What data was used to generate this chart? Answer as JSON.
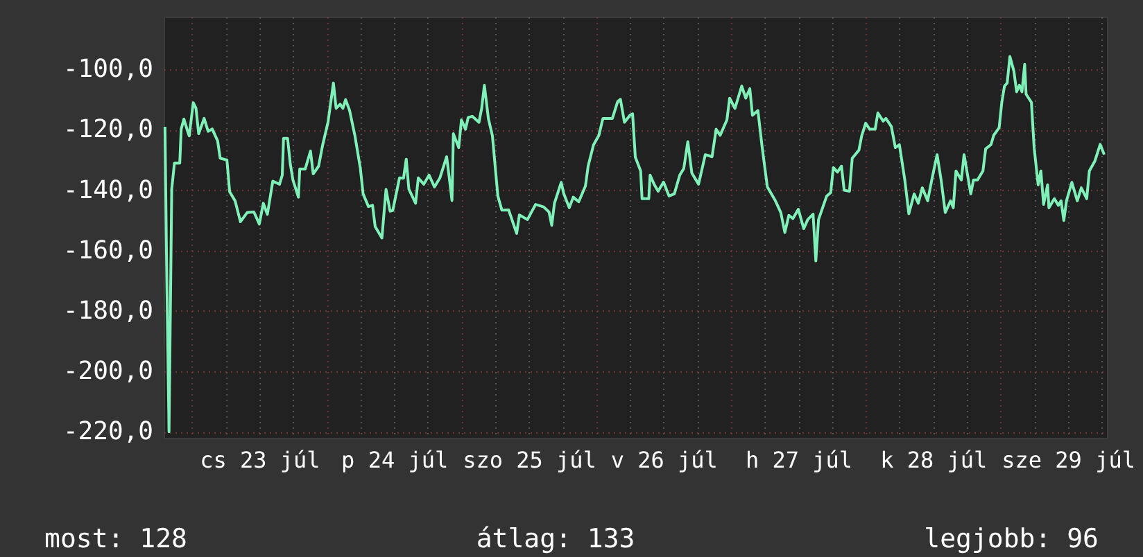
{
  "chart_data": {
    "type": "line",
    "x": [
      "--07-22T19:12",
      "--07-22T19:26",
      "--07-22T19:55",
      "--07-22T20:24",
      "--07-22T20:53",
      "--07-22T21:50",
      "--07-22T22:05",
      "--07-22T22:34",
      "--07-22T23:17",
      "--07-22T23:31",
      "--07-23T00:14",
      "--07-23T00:43",
      "--07-23T01:12",
      "--07-23T02:10",
      "--07-23T02:53",
      "--07-23T03:36",
      "--07-23T04:34",
      "--07-23T05:02",
      "--07-23T06:14",
      "--07-23T06:43",
      "--07-23T07:41",
      "--07-23T08:38",
      "--07-23T09:50",
      "--07-23T11:02",
      "--07-23T12:00",
      "--07-23T12:43",
      "--07-23T13:26",
      "--07-23T14:24",
      "--07-23T15:36",
      "--07-23T16:05",
      "--07-23T16:19",
      "--07-23T17:02",
      "--07-23T17:31",
      "--07-23T18:00",
      "--07-23T18:58",
      "--07-23T19:12",
      "--07-23T20:10",
      "--07-23T21:07",
      "--07-23T21:36",
      "--07-23T22:34",
      "--07-23T23:17",
      "--07-24T00:14",
      "--07-24T01:12",
      "--07-24T01:41",
      "--07-24T02:24",
      "--07-24T02:53",
      "--07-24T03:22",
      "--07-24T04:05",
      "--07-24T05:02",
      "--07-24T06:00",
      "--07-24T06:29",
      "--07-24T07:26",
      "--07-24T08:10",
      "--07-24T08:38",
      "--07-24T09:50",
      "--07-24T10:34",
      "--07-24T11:17",
      "--07-24T11:46",
      "--07-24T12:58",
      "--07-24T13:41",
      "--07-24T14:10",
      "--07-24T14:38",
      "--07-24T15:50",
      "--07-24T16:19",
      "--07-24T17:17",
      "--07-24T18:14",
      "--07-24T19:12",
      "--07-24T20:10",
      "--07-24T21:22",
      "--07-24T21:50",
      "--07-24T22:19",
      "--07-24T22:34",
      "--07-24T23:31",
      "--07-25T00:00",
      "--07-25T00:43",
      "--07-25T01:12",
      "--07-25T01:55",
      "--07-25T03:07",
      "--07-25T03:36",
      "--07-25T04:05",
      "--07-25T04:48",
      "--07-25T05:31",
      "--07-25T06:29",
      "--07-25T07:12",
      "--07-25T08:24",
      "--07-25T09:50",
      "--07-25T10:19",
      "--07-25T11:46",
      "--07-25T13:12",
      "--07-25T14:38",
      "--07-25T15:36",
      "--07-25T16:05",
      "--07-25T16:34",
      "--07-25T17:46",
      "--07-25T18:14",
      "--07-25T19:12",
      "--07-25T19:55",
      "--07-25T20:53",
      "--07-25T22:05",
      "--07-25T22:34",
      "--07-25T23:31",
      "--07-26T00:29",
      "--07-26T01:12",
      "--07-26T02:53",
      "--07-26T03:50",
      "--07-26T04:19",
      "--07-26T05:02",
      "--07-26T06:00",
      "--07-26T06:29",
      "--07-26T06:58",
      "--07-26T07:55",
      "--07-26T08:10",
      "--07-26T09:22",
      "--07-26T09:36",
      "--07-26T10:19",
      "--07-26T11:02",
      "--07-26T12:00",
      "--07-26T12:58",
      "--07-26T13:55",
      "--07-26T14:53",
      "--07-26T15:36",
      "--07-26T16:19",
      "--07-26T17:02",
      "--07-26T18:14",
      "--07-26T19:26",
      "--07-26T20:38",
      "--07-26T21:22",
      "--07-26T22:05",
      "--07-26T23:17",
      "--07-26T23:46",
      "--07-27T00:43",
      "--07-27T01:55",
      "--07-27T02:38",
      "--07-27T03:22",
      "--07-27T03:50",
      "--07-27T04:48",
      "--07-27T05:31",
      "--07-27T06:29",
      "--07-27T07:12",
      "--07-27T07:55",
      "--07-27T08:53",
      "--07-27T09:36",
      "--07-27T10:19",
      "--07-27T11:02",
      "--07-27T12:00",
      "--07-27T12:58",
      "--07-27T13:41",
      "--07-27T14:38",
      "--07-27T15:07",
      "--07-27T15:36",
      "--07-27T17:02",
      "--07-27T17:46",
      "--07-27T18:14",
      "--07-27T18:58",
      "--07-27T19:41",
      "--07-27T20:10",
      "--07-27T21:07",
      "--07-27T21:36",
      "--07-27T22:48",
      "--07-27T23:17",
      "--07-28T00:00",
      "--07-28T00:43",
      "--07-28T01:41",
      "--07-28T02:10",
      "--07-28T03:07",
      "--07-28T03:36",
      "--07-28T04:34",
      "--07-28T05:17",
      "--07-28T06:00",
      "--07-28T06:58",
      "--07-28T07:41",
      "--07-28T08:38",
      "--07-28T09:22",
      "--07-28T10:05",
      "--07-28T11:02",
      "--07-28T11:46",
      "--07-28T12:43",
      "--07-28T13:26",
      "--07-28T14:10",
      "--07-28T15:07",
      "--07-28T15:36",
      "--07-28T16:05",
      "--07-28T17:02",
      "--07-28T17:31",
      "--07-28T18:43",
      "--07-28T19:12",
      "--07-28T19:55",
      "--07-28T20:53",
      "--07-28T21:22",
      "--07-28T22:19",
      "--07-28T22:48",
      "--07-28T23:46",
      "--07-29T00:14",
      "--07-29T00:43",
      "--07-29T01:12",
      "--07-29T01:41",
      "--07-29T02:24",
      "--07-29T02:53",
      "--07-29T03:22",
      "--07-29T03:50",
      "--07-29T04:19",
      "--07-29T04:34",
      "--07-29T05:31",
      "--07-29T06:00",
      "--07-29T06:43",
      "--07-29T07:12",
      "--07-29T07:41",
      "--07-29T08:24",
      "--07-29T08:38",
      "--07-29T09:36",
      "--07-29T10:19",
      "--07-29T10:48",
      "--07-29T11:17",
      "--07-29T11:46",
      "--07-29T12:43",
      "--07-29T13:41",
      "--07-29T14:24",
      "--07-29T15:22",
      "--07-29T15:50",
      "--07-29T16:48",
      "--07-29T17:46",
      "--07-29T18:29"
    ],
    "series": [
      {
        "color": "#7ff0b8",
        "values": [
          -119,
          -156.6,
          -220,
          -139.6,
          -131,
          -131,
          -119.8,
          -116.4,
          -120.8,
          -122,
          -111,
          -112.8,
          -121.3,
          -116.2,
          -120.5,
          -119.7,
          -123.6,
          -129.4,
          -130,
          -140.5,
          -143.5,
          -150.4,
          -147.4,
          -147.2,
          -151.2,
          -144.3,
          -148,
          -137,
          -138,
          -135,
          -122.8,
          -122.8,
          -131.3,
          -136.7,
          -142.3,
          -133,
          -133,
          -127,
          -134.6,
          -132,
          -125,
          -117.5,
          -104.5,
          -112.9,
          -111.5,
          -112.9,
          -110,
          -113.6,
          -122,
          -132.8,
          -141.2,
          -145.4,
          -145,
          -152,
          -155.8,
          -139.7,
          -146.9,
          -146.7,
          -135.9,
          -136,
          -129.7,
          -139.6,
          -144.3,
          -135.9,
          -138,
          -135,
          -138.9,
          -135.9,
          -128.9,
          -135.9,
          -143.4,
          -121.3,
          -125.9,
          -116.7,
          -119.8,
          -115.9,
          -115.5,
          -117.5,
          -112.9,
          -105.2,
          -116.3,
          -122,
          -141.9,
          -146.6,
          -146.5,
          -154.3,
          -148.2,
          -149.7,
          -144.7,
          -145.5,
          -147.2,
          -151.6,
          -144.3,
          -137.4,
          -141.2,
          -145.8,
          -142.3,
          -143.8,
          -138.6,
          -132,
          -125,
          -121.8,
          -116.2,
          -116.2,
          -110.6,
          -109.9,
          -117.5,
          -115.2,
          -114.7,
          -129,
          -133.6,
          -142.8,
          -142.8,
          -135,
          -138,
          -140.3,
          -137.3,
          -141.9,
          -141.2,
          -135,
          -132.8,
          -123.9,
          -134.3,
          -138,
          -128.2,
          -128.9,
          -119.8,
          -121.8,
          -116.7,
          -109.5,
          -112.9,
          -105.5,
          -109.5,
          -106.4,
          -115.2,
          -113.6,
          -125.1,
          -138.9,
          -141.2,
          -143.5,
          -147.4,
          -154,
          -148.3,
          -149.4,
          -146.3,
          -152.7,
          -149.7,
          -147.9,
          -163.4,
          -149.7,
          -142,
          -140.8,
          -132.5,
          -134,
          -132,
          -140,
          -140.3,
          -129.4,
          -126.7,
          -122,
          -117.8,
          -119.8,
          -119.8,
          -114.4,
          -117.1,
          -116.2,
          -118.9,
          -125.9,
          -124.9,
          -136.6,
          -147.8,
          -141.2,
          -144.3,
          -139.2,
          -143.5,
          -136.6,
          -128.2,
          -136.6,
          -147.4,
          -143.5,
          -145.8,
          -133.6,
          -136.6,
          -128.2,
          -141.2,
          -136.6,
          -136.6,
          -133.6,
          -126.3,
          -124.9,
          -121.8,
          -119.3,
          -111,
          -105.5,
          -104.5,
          -95.7,
          -100.6,
          -107.4,
          -105.2,
          -107.4,
          -98.3,
          -108.2,
          -110.9,
          -125.9,
          -138.2,
          -133.6,
          -144.7,
          -138.2,
          -145.8,
          -142.8,
          -145,
          -143.5,
          -150,
          -143.5,
          -137.4,
          -143.5,
          -139.2,
          -142.8,
          -133.6,
          -130.4,
          -124.8,
          -128.2
        ]
      }
    ],
    "xlim": [
      "--07-22T18:58",
      "--07-29T18:58"
    ],
    "xticks": [
      {
        "value": "--07-23T00:00",
        "label": null
      },
      {
        "value": "--07-23T06:00",
        "label": null
      },
      {
        "value": "--07-23T12:00",
        "label": "cs 23 júl"
      },
      {
        "value": "--07-23T18:00",
        "label": null
      },
      {
        "value": "--07-24T00:00",
        "label": null
      },
      {
        "value": "--07-24T06:00",
        "label": null
      },
      {
        "value": "--07-24T12:00",
        "label": "p 24 júl"
      },
      {
        "value": "--07-24T18:00",
        "label": null
      },
      {
        "value": "--07-25T00:00",
        "label": null
      },
      {
        "value": "--07-25T06:00",
        "label": null
      },
      {
        "value": "--07-25T12:00",
        "label": "szo 25 júl"
      },
      {
        "value": "--07-25T18:00",
        "label": null
      },
      {
        "value": "--07-26T00:00",
        "label": null
      },
      {
        "value": "--07-26T06:00",
        "label": null
      },
      {
        "value": "--07-26T12:00",
        "label": "v 26 júl"
      },
      {
        "value": "--07-26T18:00",
        "label": null
      },
      {
        "value": "--07-27T00:00",
        "label": null
      },
      {
        "value": "--07-27T06:00",
        "label": null
      },
      {
        "value": "--07-27T12:00",
        "label": "h 27 júl"
      },
      {
        "value": "--07-27T18:00",
        "label": null
      },
      {
        "value": "--07-28T00:00",
        "label": null
      },
      {
        "value": "--07-28T06:00",
        "label": null
      },
      {
        "value": "--07-28T12:00",
        "label": "k 28 júl"
      },
      {
        "value": "--07-28T18:00",
        "label": null
      },
      {
        "value": "--07-29T00:00",
        "label": null
      },
      {
        "value": "--07-29T06:00",
        "label": null
      },
      {
        "value": "--07-29T12:00",
        "label": "sze 29 júl"
      },
      {
        "value": "--07-29T18:00",
        "label": null
      }
    ],
    "ylim": [
      -222,
      -82.5
    ],
    "yticks": [
      {
        "value": -220,
        "label": "-220,0"
      },
      {
        "value": -200,
        "label": "-200,0"
      },
      {
        "value": -180,
        "label": "-180,0"
      },
      {
        "value": -160,
        "label": "-160,0"
      },
      {
        "value": -140,
        "label": "-140,0"
      },
      {
        "value": -120,
        "label": "-120,0"
      },
      {
        "value": -100,
        "label": "-100,0"
      }
    ],
    "grid": true,
    "annotations": [
      "most: 128",
      "átlag: 133",
      "legjobb: 96"
    ]
  }
}
